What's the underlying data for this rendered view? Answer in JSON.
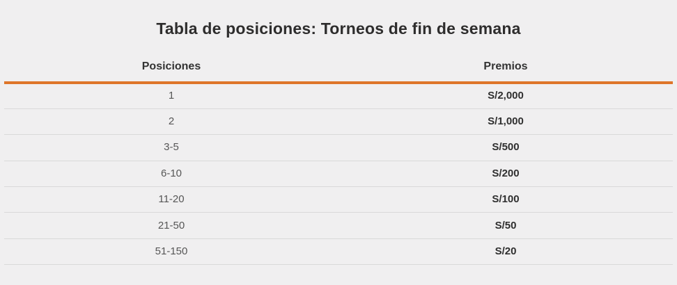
{
  "page": {
    "title": "Tabla de posiciones: Torneos de fin de semana"
  },
  "theme": {
    "background": "#f0eff0",
    "accent": "#de7529",
    "divider": "#d9d9d9",
    "title_color": "#2e2d2d",
    "header_text": "#333333",
    "posicion_text": "#565656",
    "premio_text": "#2f2f2f"
  },
  "table": {
    "columns": [
      {
        "label": "Posiciones"
      },
      {
        "label": "Premios"
      }
    ],
    "rows": [
      {
        "posicion": "1",
        "premio": "S/2,000"
      },
      {
        "posicion": "2",
        "premio": "S/1,000"
      },
      {
        "posicion": "3-5",
        "premio": "S/500"
      },
      {
        "posicion": "6-10",
        "premio": "S/200"
      },
      {
        "posicion": "11-20",
        "premio": "S/100"
      },
      {
        "posicion": "21-50",
        "premio": "S/50"
      },
      {
        "posicion": "51-150",
        "premio": "S/20"
      }
    ]
  }
}
